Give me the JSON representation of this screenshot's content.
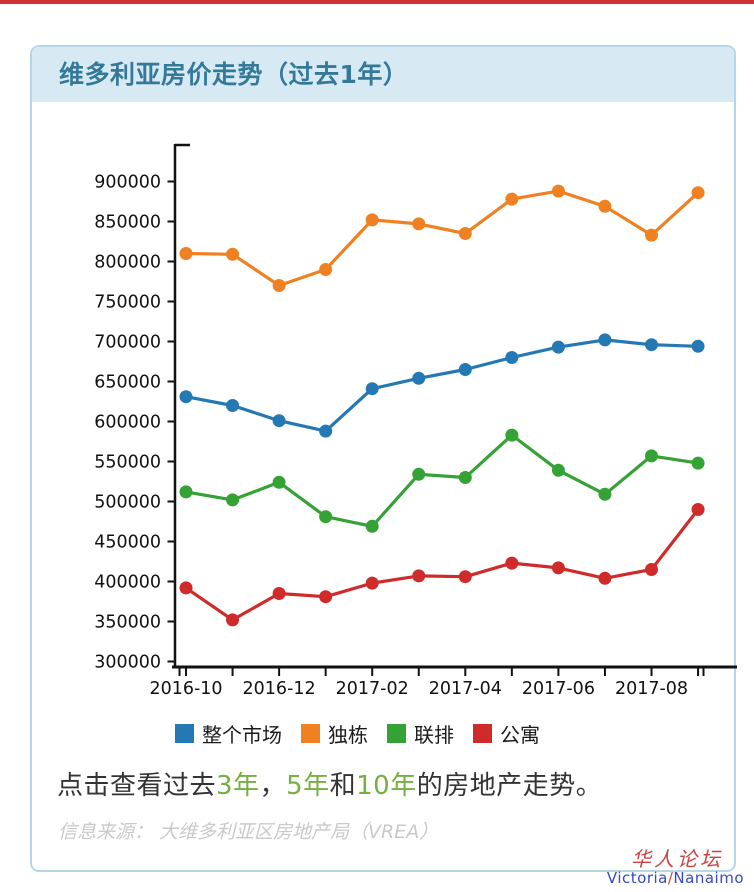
{
  "page": {
    "top_accent_color": "#cc3333"
  },
  "card": {
    "title": "维多利亚房价走势（过去1年）",
    "header_bg": "#d7eaf4",
    "title_color": "#34789a",
    "border_color": "#b5d8e6"
  },
  "chart_data": {
    "type": "line",
    "title": "维多利亚房价走势（过去1年）",
    "x": [
      "2016-10",
      "2016-11",
      "2016-12",
      "2017-01",
      "2017-02",
      "2017-03",
      "2017-04",
      "2017-05",
      "2017-06",
      "2017-07",
      "2017-08",
      "2017-09"
    ],
    "x_tick_labels": [
      "2016-10",
      "2016-12",
      "2017-02",
      "2017-04",
      "2017-06",
      "2017-08"
    ],
    "y_ticks": [
      300000,
      350000,
      400000,
      450000,
      500000,
      550000,
      600000,
      650000,
      700000,
      750000,
      800000,
      850000,
      900000
    ],
    "ylim": [
      300000,
      900000
    ],
    "grid": false,
    "legend_position": "bottom",
    "series": [
      {
        "name": "整个市场",
        "key": "market",
        "color": "#2478b4",
        "values": [
          631000,
          620000,
          601000,
          588000,
          641000,
          654000,
          665000,
          680000,
          693000,
          702000,
          696000,
          694000
        ]
      },
      {
        "name": "独栋",
        "key": "detached",
        "color": "#ef8122",
        "values": [
          810000,
          809000,
          770000,
          790000,
          852000,
          847000,
          835000,
          878000,
          888000,
          869000,
          833000,
          886000
        ]
      },
      {
        "name": "联排",
        "key": "townhouse",
        "color": "#35a235",
        "values": [
          512000,
          502000,
          524000,
          481000,
          469000,
          534000,
          530000,
          583000,
          539000,
          509000,
          557000,
          548000
        ]
      },
      {
        "name": "公寓",
        "key": "condo",
        "color": "#cf2b2b",
        "values": [
          392000,
          352000,
          385000,
          381000,
          398000,
          407000,
          406000,
          423000,
          417000,
          404000,
          415000,
          490000
        ]
      }
    ]
  },
  "footer": {
    "cta_segments": [
      {
        "text": "点击查看过去",
        "link": false
      },
      {
        "text": "3年",
        "link": true,
        "key": "3-years"
      },
      {
        "text": "，",
        "link": false
      },
      {
        "text": "5年",
        "link": true,
        "key": "5-years"
      },
      {
        "text": "和",
        "link": false
      },
      {
        "text": "10年",
        "link": true,
        "key": "10-years"
      },
      {
        "text": "的房地产走势。",
        "link": false
      }
    ],
    "link_color": "#76b041",
    "source_text": "信息来源： 大维多利亚区房地产局（VREA）"
  },
  "watermark": {
    "line1": "华人论坛",
    "line2_part1": "Victoria",
    "line2_slash": "/",
    "line2_part2": "Nanaimo"
  }
}
